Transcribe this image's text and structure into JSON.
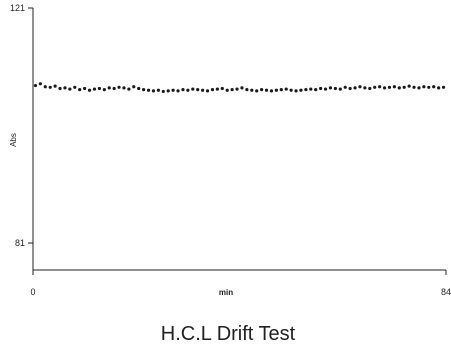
{
  "chart_data": {
    "type": "scatter",
    "title": "H.C.L Drift Test",
    "xlabel": "min",
    "ylabel": "Abs",
    "xlim": [
      0,
      84
    ],
    "ylim": [
      81,
      121
    ],
    "x_tick_labels": [
      "0",
      "84"
    ],
    "y_tick_labels": [
      "121",
      "81"
    ],
    "grid": false,
    "series": [
      {
        "color": "#1a1a1a",
        "x": [
          0.5,
          1.5,
          2.5,
          3.5,
          4.5,
          5.5,
          6.5,
          7.5,
          8.5,
          9.5,
          10.5,
          11.5,
          12.5,
          13.5,
          14.5,
          15.5,
          16.5,
          17.5,
          18.5,
          19.5,
          20.5,
          21.5,
          22.5,
          23.5,
          24.5,
          25.5,
          26.5,
          27.5,
          28.5,
          29.5,
          30.5,
          31.5,
          32.5,
          33.5,
          34.5,
          35.5,
          36.5,
          37.5,
          38.5,
          39.5,
          40.5,
          41.5,
          42.5,
          43.5,
          44.5,
          45.5,
          46.5,
          47.5,
          48.5,
          49.5,
          50.5,
          51.5,
          52.5,
          53.5,
          54.5,
          55.5,
          56.5,
          57.5,
          58.5,
          59.5,
          60.5,
          61.5,
          62.5,
          63.5,
          64.5,
          65.5,
          66.5,
          67.5,
          68.5,
          69.5,
          70.5,
          71.5,
          72.5,
          73.5,
          74.5,
          75.5,
          76.5,
          77.5,
          78.5,
          79.5,
          80.5,
          81.5,
          82.5,
          83.5
        ],
        "y": [
          107.8,
          108.1,
          107.6,
          107.5,
          107.7,
          107.3,
          107.4,
          107.2,
          107.5,
          107.1,
          107.3,
          107.0,
          107.2,
          107.3,
          107.1,
          107.4,
          107.3,
          107.5,
          107.4,
          107.2,
          107.6,
          107.3,
          107.1,
          107.0,
          106.9,
          107.0,
          106.8,
          106.9,
          107.0,
          106.9,
          107.1,
          107.0,
          107.2,
          107.1,
          107.0,
          106.9,
          107.1,
          107.2,
          107.3,
          107.0,
          107.1,
          107.2,
          107.4,
          107.1,
          107.0,
          106.9,
          107.1,
          107.0,
          106.9,
          107.0,
          107.1,
          107.2,
          107.0,
          106.9,
          107.0,
          107.1,
          107.2,
          107.1,
          107.3,
          107.2,
          107.4,
          107.3,
          107.2,
          107.5,
          107.3,
          107.4,
          107.6,
          107.4,
          107.3,
          107.5,
          107.6,
          107.4,
          107.5,
          107.6,
          107.4,
          107.5,
          107.7,
          107.5,
          107.4,
          107.6,
          107.5,
          107.6,
          107.4,
          107.5
        ]
      }
    ]
  }
}
